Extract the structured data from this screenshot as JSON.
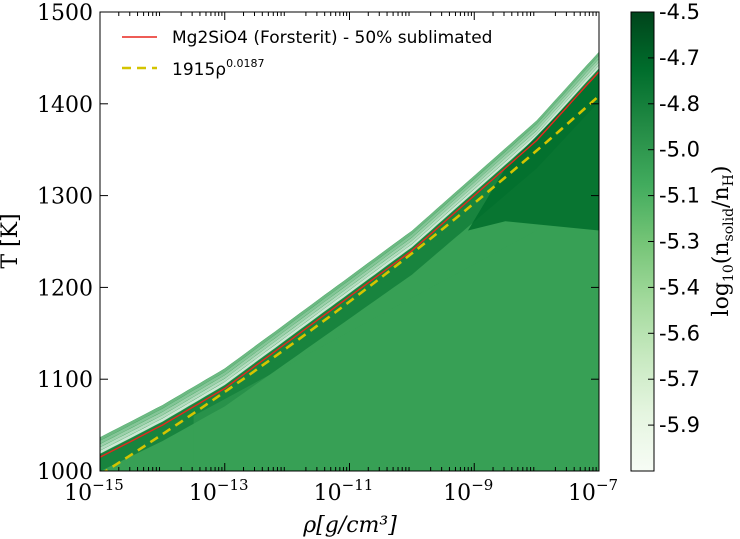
{
  "chart_data": {
    "type": "heatmap",
    "title": "",
    "xlabel": "ρ[g/cm³]",
    "ylabel": "T [K]",
    "x_scale": "log",
    "xlim_log10": [
      -15,
      -7
    ],
    "ylim": [
      1000,
      1500
    ],
    "x_ticks": [
      {
        "base": "10",
        "exp": "−15",
        "log10": -15
      },
      {
        "base": "10",
        "exp": "−13",
        "log10": -13
      },
      {
        "base": "10",
        "exp": "−11",
        "log10": -11
      },
      {
        "base": "10",
        "exp": "−9",
        "log10": -9
      },
      {
        "base": "10",
        "exp": "−7",
        "log10": -7
      }
    ],
    "y_ticks": [
      1000,
      1100,
      1200,
      1300,
      1400,
      1500
    ],
    "series": [
      {
        "name": "Mg2SiO4 (Forsterit) - 50% sublimated",
        "style": "solid",
        "color": "#e8261e",
        "points_log10rho_T": [
          [
            -15,
            1015
          ],
          [
            -14,
            1050
          ],
          [
            -13,
            1090
          ],
          [
            -12,
            1140
          ],
          [
            -11,
            1190
          ],
          [
            -10,
            1240
          ],
          [
            -9,
            1300
          ],
          [
            -8,
            1360
          ],
          [
            -7,
            1435
          ]
        ]
      },
      {
        "name": "1915ρ",
        "name_exponent": "0.0187",
        "style": "dashed",
        "color": "#d4c400",
        "formula": {
          "coef": 1915,
          "exponent": 0.0187
        }
      }
    ],
    "colorbar": {
      "label": "log10(nsolid/nH)",
      "label_base": "log",
      "label_sub": "10",
      "label_paren_open": "(",
      "label_n1": "n",
      "label_n1_sub": "solid",
      "label_slash": "/",
      "label_n2": "n",
      "label_n2_sub": "H",
      "label_paren_close": ")",
      "range": [
        -6.0,
        -4.5
      ],
      "ticks": [
        "-4.5",
        "-4.7",
        "-4.8",
        "-5.0",
        "-5.1",
        "-5.3",
        "-5.4",
        "-5.6",
        "-5.7",
        "-5.9"
      ],
      "tick_values": [
        -4.5,
        -4.65,
        -4.8,
        -4.95,
        -5.1,
        -5.25,
        -5.4,
        -5.55,
        -5.7,
        -5.85
      ]
    },
    "colors": {
      "fill_base": "#37a055",
      "fill_dark": "#006d2c",
      "fill_light": "#a1d99b",
      "cb_stops": [
        "#00441b",
        "#006d2c",
        "#238b45",
        "#41ab5d",
        "#74c476",
        "#a1d99b",
        "#c7e9c0",
        "#e5f5e0",
        "#f7fcf5"
      ]
    },
    "legend": {
      "position": "top-left"
    }
  }
}
